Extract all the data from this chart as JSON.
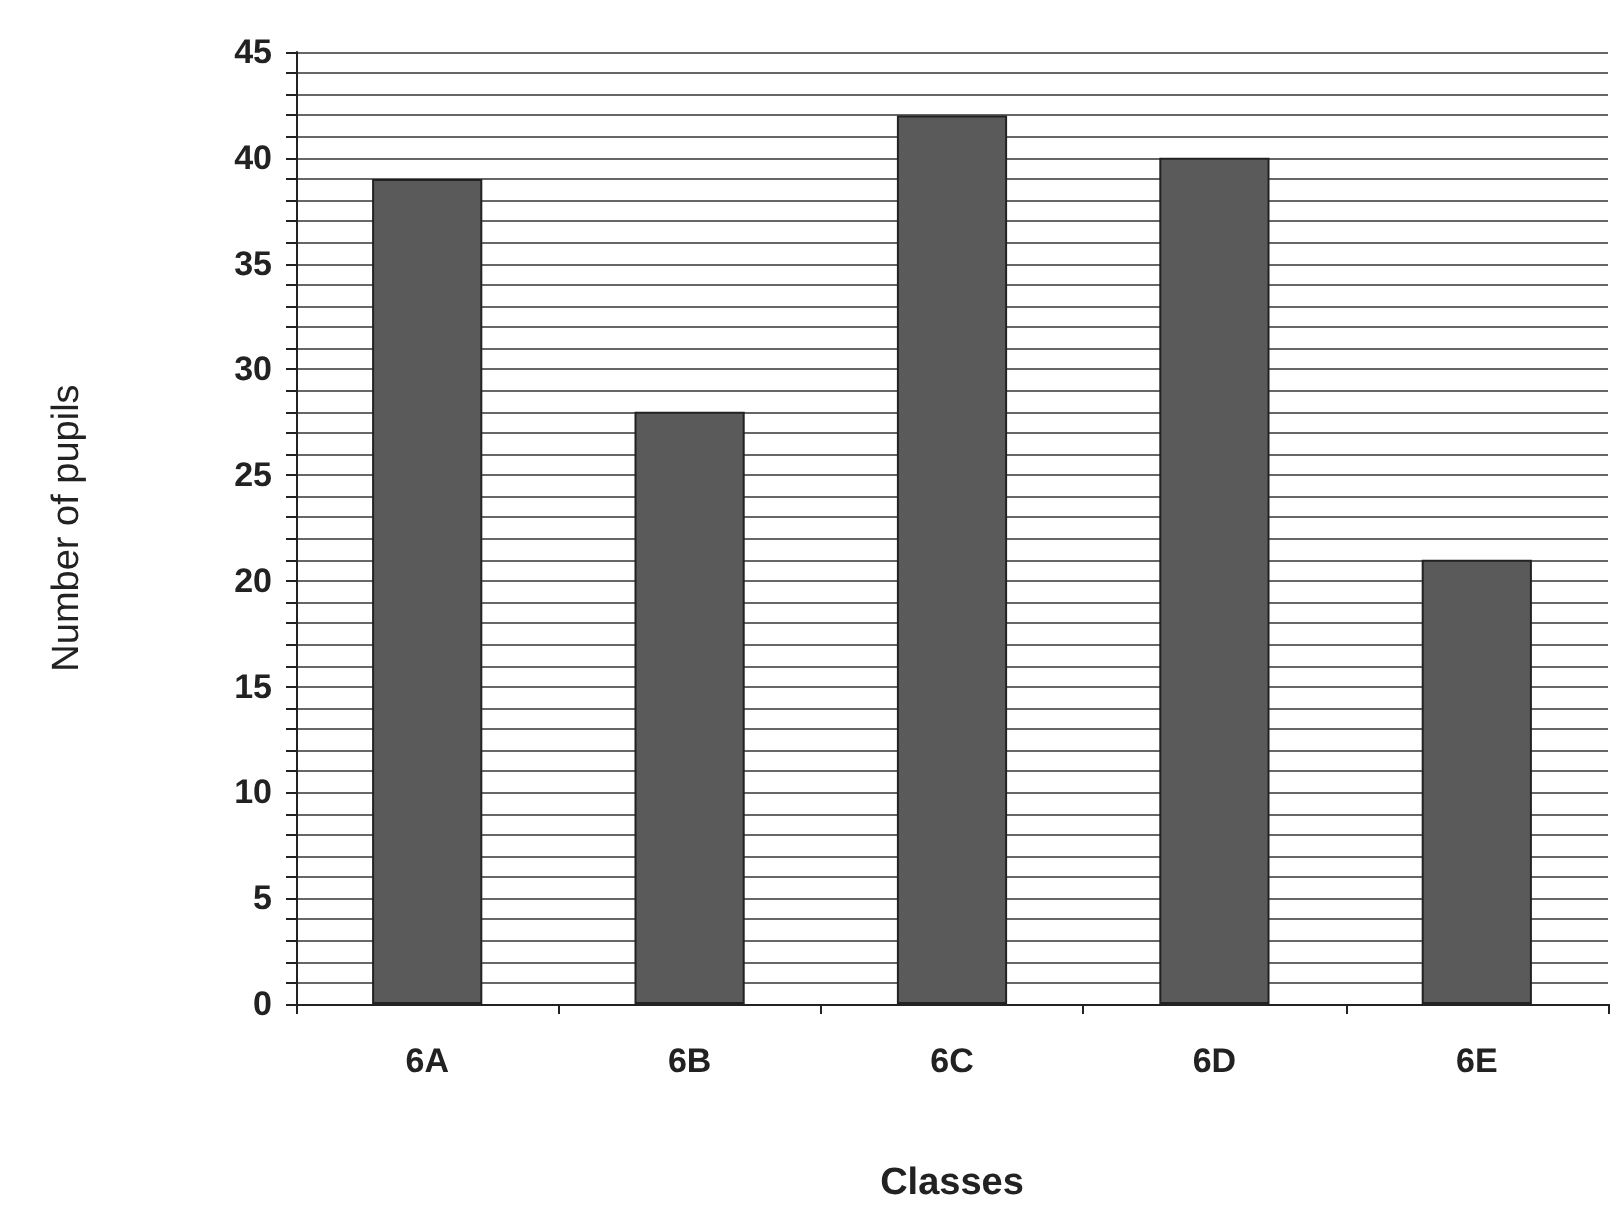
{
  "chart_data": {
    "type": "bar",
    "xlabel": "Classes",
    "ylabel": "Number of pupils",
    "categories": [
      "6A",
      "6B",
      "6C",
      "6D",
      "6E"
    ],
    "values": [
      39,
      28,
      42,
      40,
      21
    ],
    "color": "#5a5a5a",
    "ylim": [
      0,
      45
    ],
    "yticks": [
      0,
      {
        "value": 1,
        "label": null
      },
      {
        "value": 2,
        "label": null
      },
      {
        "value": 3,
        "label": null
      },
      {
        "value": 4,
        "label": null
      },
      5,
      {
        "value": 6,
        "label": null
      },
      {
        "value": 7,
        "label": null
      },
      {
        "value": 8,
        "label": null
      },
      {
        "value": 9,
        "label": null
      },
      10,
      {
        "value": 11,
        "label": null
      },
      {
        "value": 12,
        "label": null
      },
      {
        "value": 13,
        "label": null
      },
      {
        "value": 14,
        "label": null
      },
      15,
      {
        "value": 16,
        "label": null
      },
      {
        "value": 17,
        "label": null
      },
      {
        "value": 18,
        "label": null
      },
      {
        "value": 19,
        "label": null
      },
      20,
      {
        "value": 21,
        "label": null
      },
      {
        "value": 22,
        "label": null
      },
      {
        "value": 23,
        "label": null
      },
      {
        "value": 24,
        "label": null
      },
      25,
      {
        "value": 26,
        "label": null
      },
      {
        "value": 27,
        "label": null
      },
      {
        "value": 28,
        "label": null
      },
      {
        "value": 29,
        "label": null
      },
      30,
      {
        "value": 31,
        "label": null
      },
      {
        "value": 32,
        "label": null
      },
      {
        "value": 33,
        "label": null
      },
      {
        "value": 34,
        "label": null
      },
      35,
      {
        "value": 36,
        "label": null
      },
      {
        "value": 37,
        "label": null
      },
      {
        "value": 38,
        "label": null
      },
      {
        "value": 39,
        "label": null
      },
      40,
      {
        "value": 41,
        "label": null
      },
      {
        "value": 42,
        "label": null
      },
      {
        "value": 43,
        "label": null
      },
      {
        "value": 44,
        "label": null
      },
      45
    ],
    "grid": "y"
  }
}
